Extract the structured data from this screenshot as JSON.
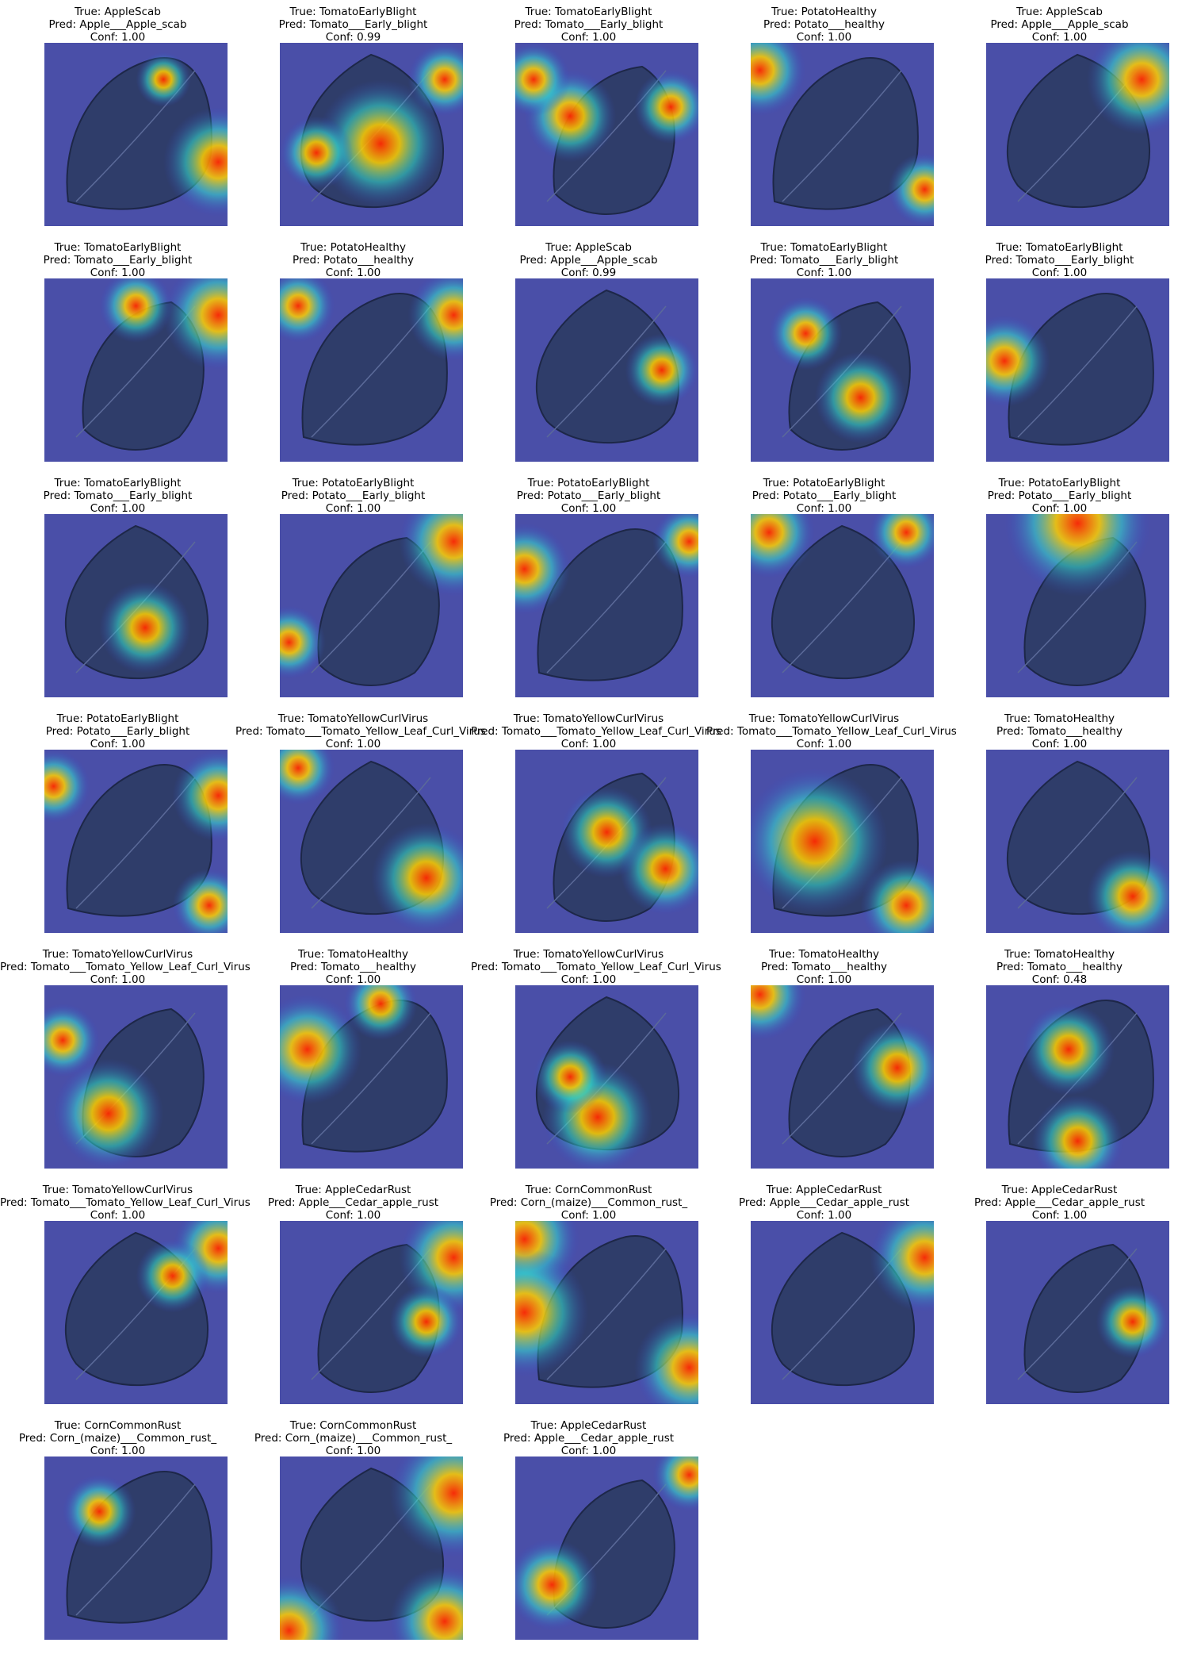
{
  "panels": [
    {
      "true_label": "True: AppleScab",
      "pred_label": "Pred: Apple___Apple_scab",
      "conf": "Conf: 1.00",
      "leaf": "leaf-icon",
      "hot": [
        [
          0.95,
          0.65,
          0.3
        ],
        [
          0.65,
          0.2,
          0.15
        ]
      ]
    },
    {
      "true_label": "True: TomatoEarlyBlight",
      "pred_label": "Pred: Tomato___Early_blight",
      "conf": "Conf: 0.99",
      "leaf": "leaf-icon",
      "hot": [
        [
          0.55,
          0.55,
          0.35
        ],
        [
          0.2,
          0.6,
          0.2
        ],
        [
          0.9,
          0.2,
          0.2
        ]
      ]
    },
    {
      "true_label": "True: TomatoEarlyBlight",
      "pred_label": "Pred: Tomato___Early_blight",
      "conf": "Conf: 1.00",
      "leaf": "leaf-icon",
      "hot": [
        [
          0.3,
          0.4,
          0.25
        ],
        [
          0.1,
          0.2,
          0.2
        ],
        [
          0.85,
          0.35,
          0.2
        ]
      ]
    },
    {
      "true_label": "True: PotatoHealthy",
      "pred_label": "Pred: Potato___healthy",
      "conf": "Conf: 1.00",
      "leaf": "leaf-icon",
      "hot": [
        [
          0.05,
          0.15,
          0.25
        ],
        [
          0.95,
          0.8,
          0.2
        ]
      ]
    },
    {
      "true_label": "True: AppleScab",
      "pred_label": "Pred: Apple___Apple_scab",
      "conf": "Conf: 1.00",
      "leaf": "leaf-icon",
      "hot": [
        [
          0.85,
          0.2,
          0.3
        ]
      ]
    },
    {
      "true_label": "True: TomatoEarlyBlight",
      "pred_label": "Pred: Tomato___Early_blight",
      "conf": "Conf: 1.00",
      "leaf": "leaf-icon",
      "hot": [
        [
          0.95,
          0.2,
          0.3
        ],
        [
          0.5,
          0.15,
          0.2
        ]
      ]
    },
    {
      "true_label": "True: PotatoHealthy",
      "pred_label": "Pred: Potato___healthy",
      "conf": "Conf: 1.00",
      "leaf": "leaf-icon",
      "hot": [
        [
          0.95,
          0.2,
          0.25
        ],
        [
          0.1,
          0.15,
          0.2
        ]
      ]
    },
    {
      "true_label": "True: AppleScab",
      "pred_label": "Pred: Apple___Apple_scab",
      "conf": "Conf: 0.99",
      "leaf": "leaf-icon",
      "hot": [
        [
          0.8,
          0.5,
          0.2
        ]
      ]
    },
    {
      "true_label": "True: TomatoEarlyBlight",
      "pred_label": "Pred: Tomato___Early_blight",
      "conf": "Conf: 1.00",
      "leaf": "leaf-icon",
      "hot": [
        [
          0.6,
          0.65,
          0.25
        ],
        [
          0.3,
          0.3,
          0.2
        ]
      ]
    },
    {
      "true_label": "True: TomatoEarlyBlight",
      "pred_label": "Pred: Tomato___Early_blight",
      "conf": "Conf: 1.00",
      "leaf": "leaf-icon",
      "hot": [
        [
          0.1,
          0.45,
          0.25
        ]
      ]
    },
    {
      "true_label": "True: TomatoEarlyBlight",
      "pred_label": "Pred: Tomato___Early_blight",
      "conf": "Conf: 1.00",
      "leaf": "leaf-icon",
      "hot": [
        [
          0.55,
          0.62,
          0.25
        ]
      ]
    },
    {
      "true_label": "True: PotatoEarlyBlight",
      "pred_label": "Pred: Potato___Early_blight",
      "conf": "Conf: 1.00",
      "leaf": "leaf-icon",
      "hot": [
        [
          0.95,
          0.15,
          0.3
        ],
        [
          0.05,
          0.7,
          0.2
        ]
      ]
    },
    {
      "true_label": "True: PotatoEarlyBlight",
      "pred_label": "Pred: Potato___Early_blight",
      "conf": "Conf: 1.00",
      "leaf": "leaf-icon",
      "hot": [
        [
          0.05,
          0.3,
          0.25
        ],
        [
          0.95,
          0.15,
          0.2
        ]
      ]
    },
    {
      "true_label": "True: PotatoEarlyBlight",
      "pred_label": "Pred: Potato___Early_blight",
      "conf": "Conf: 1.00",
      "leaf": "leaf-icon",
      "hot": [
        [
          0.1,
          0.1,
          0.25
        ],
        [
          0.85,
          0.1,
          0.2
        ]
      ]
    },
    {
      "true_label": "True: PotatoEarlyBlight",
      "pred_label": "Pred: Potato___Early_blight",
      "conf": "Conf: 1.00",
      "leaf": "leaf-icon",
      "hot": [
        [
          0.5,
          0.05,
          0.4
        ]
      ]
    },
    {
      "true_label": "True: PotatoEarlyBlight",
      "pred_label": "Pred: Potato___Early_blight",
      "conf": "Conf: 1.00",
      "leaf": "leaf-icon",
      "hot": [
        [
          0.95,
          0.25,
          0.25
        ],
        [
          0.05,
          0.2,
          0.2
        ],
        [
          0.9,
          0.85,
          0.2
        ]
      ]
    },
    {
      "true_label": "True: TomatoYellowCurlVirus",
      "pred_label": "Pred: Tomato___Tomato_Yellow_Leaf_Curl_Virus",
      "conf": "Conf: 1.00",
      "leaf": "leaf-icon",
      "hot": [
        [
          0.8,
          0.7,
          0.3
        ],
        [
          0.1,
          0.1,
          0.2
        ]
      ]
    },
    {
      "true_label": "True: TomatoYellowCurlVirus",
      "pred_label": "Pred: Tomato___Tomato_Yellow_Leaf_Curl_Virus",
      "conf": "Conf: 1.00",
      "leaf": "leaf-icon",
      "hot": [
        [
          0.5,
          0.45,
          0.25
        ],
        [
          0.82,
          0.65,
          0.25
        ]
      ]
    },
    {
      "true_label": "True: TomatoYellowCurlVirus",
      "pred_label": "Pred: Tomato___Tomato_Yellow_Leaf_Curl_Virus",
      "conf": "Conf: 1.00",
      "leaf": "leaf-icon",
      "hot": [
        [
          0.35,
          0.5,
          0.4
        ],
        [
          0.85,
          0.85,
          0.25
        ]
      ]
    },
    {
      "true_label": "True: TomatoHealthy",
      "pred_label": "Pred: Tomato___healthy",
      "conf": "Conf: 1.00",
      "leaf": "leaf-icon",
      "hot": [
        [
          0.8,
          0.8,
          0.25
        ]
      ]
    },
    {
      "true_label": "True: TomatoYellowCurlVirus",
      "pred_label": "Pred: Tomato___Tomato_Yellow_Leaf_Curl_Virus",
      "conf": "Conf: 1.00",
      "leaf": "leaf-icon",
      "hot": [
        [
          0.35,
          0.7,
          0.3
        ],
        [
          0.1,
          0.3,
          0.2
        ]
      ]
    },
    {
      "true_label": "True: TomatoHealthy",
      "pred_label": "Pred: Tomato___healthy",
      "conf": "Conf: 1.00",
      "leaf": "leaf-icon",
      "hot": [
        [
          0.15,
          0.35,
          0.3
        ],
        [
          0.55,
          0.1,
          0.2
        ]
      ]
    },
    {
      "true_label": "True: TomatoYellowCurlVirus",
      "pred_label": "Pred: Tomato___Tomato_Yellow_Leaf_Curl_Virus",
      "conf": "Conf: 1.00",
      "leaf": "leaf-icon",
      "hot": [
        [
          0.45,
          0.72,
          0.3
        ],
        [
          0.3,
          0.5,
          0.2
        ]
      ]
    },
    {
      "true_label": "True: TomatoHealthy",
      "pred_label": "Pred: Tomato___healthy",
      "conf": "Conf: 1.00",
      "leaf": "leaf-icon",
      "hot": [
        [
          0.8,
          0.45,
          0.25
        ],
        [
          0.05,
          0.05,
          0.25
        ]
      ]
    },
    {
      "true_label": "True: TomatoHealthy",
      "pred_label": "Pred: Tomato___healthy",
      "conf": "Conf: 0.48",
      "leaf": "leaf-icon",
      "hot": [
        [
          0.45,
          0.35,
          0.25
        ],
        [
          0.5,
          0.85,
          0.25
        ]
      ]
    },
    {
      "true_label": "True: TomatoYellowCurlVirus",
      "pred_label": "Pred: Tomato___Tomato_Yellow_Leaf_Curl_Virus",
      "conf": "Conf: 1.00",
      "leaf": "leaf-icon",
      "hot": [
        [
          0.95,
          0.15,
          0.25
        ],
        [
          0.7,
          0.3,
          0.2
        ]
      ]
    },
    {
      "true_label": "True: AppleCedarRust",
      "pred_label": "Pred: Apple___Cedar_apple_rust",
      "conf": "Conf: 1.00",
      "leaf": "leaf-icon",
      "hot": [
        [
          0.95,
          0.2,
          0.3
        ],
        [
          0.8,
          0.55,
          0.2
        ]
      ]
    },
    {
      "true_label": "True: CornCommonRust",
      "pred_label": "Pred: Corn_(maize)___Common_rust_",
      "conf": "Conf: 1.00",
      "leaf": "leaf-icon",
      "hot": [
        [
          0.05,
          0.1,
          0.3
        ],
        [
          0.05,
          0.5,
          0.35
        ],
        [
          0.95,
          0.8,
          0.3
        ]
      ]
    },
    {
      "true_label": "True: AppleCedarRust",
      "pred_label": "Pred: Apple___Cedar_apple_rust",
      "conf": "Conf: 1.00",
      "leaf": "leaf-icon",
      "hot": [
        [
          0.95,
          0.2,
          0.3
        ]
      ]
    },
    {
      "true_label": "True: AppleCedarRust",
      "pred_label": "Pred: Apple___Cedar_apple_rust",
      "conf": "Conf: 1.00",
      "leaf": "leaf-icon",
      "hot": [
        [
          0.8,
          0.55,
          0.2
        ]
      ]
    },
    {
      "true_label": "True: CornCommonRust",
      "pred_label": "Pred: Corn_(maize)___Common_rust_",
      "conf": "Conf: 1.00",
      "leaf": "leaf-icon",
      "hot": [
        [
          0.3,
          0.3,
          0.2
        ]
      ]
    },
    {
      "true_label": "True: CornCommonRust",
      "pred_label": "Pred: Corn_(maize)___Common_rust_",
      "conf": "Conf: 1.00",
      "leaf": "leaf-icon",
      "hot": [
        [
          0.95,
          0.2,
          0.35
        ],
        [
          0.05,
          0.95,
          0.3
        ],
        [
          0.9,
          0.9,
          0.3
        ]
      ]
    },
    {
      "true_label": "True: AppleCedarRust",
      "pred_label": "Pred: Apple___Cedar_apple_rust",
      "conf": "Conf: 1.00",
      "leaf": "leaf-icon",
      "hot": [
        [
          0.2,
          0.7,
          0.25
        ],
        [
          0.95,
          0.1,
          0.2
        ]
      ]
    }
  ]
}
